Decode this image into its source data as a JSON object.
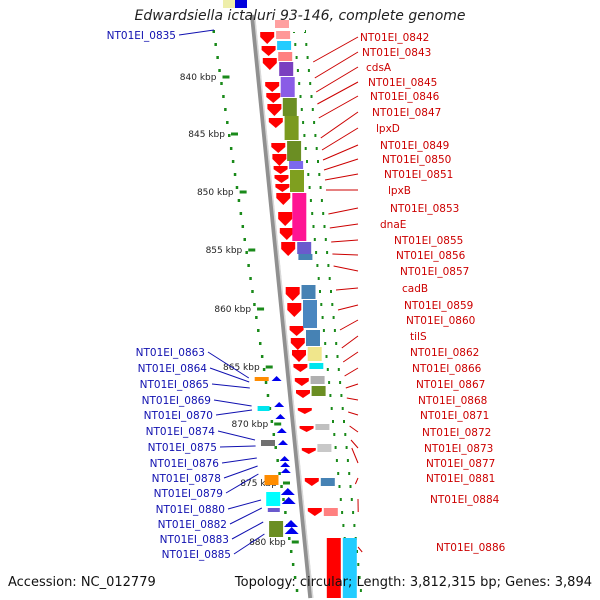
{
  "title": "Edwardsiella ictaluri 93-146, complete genome",
  "footer": {
    "accession": "Accession: NC_012779",
    "summary": "Topology: circular; Length: 3,812,315 bp; Genes: 3,894"
  },
  "colors": {
    "left_label": "#1010b0",
    "right_label": "#cc0000",
    "backbone": "#909090",
    "ruler": "#1a8a1a"
  },
  "ruler_ticks": [
    "840 kbp",
    "845 kbp",
    "850 kbp",
    "855 kbp",
    "860 kbp",
    "865 kbp",
    "870 kbp",
    "875 kbp",
    "880 kbp"
  ],
  "left_labels": [
    "NT01EI_0835",
    "NT01EI_0863",
    "NT01EI_0864",
    "NT01EI_0865",
    "NT01EI_0869",
    "NT01EI_0870",
    "NT01EI_0874",
    "NT01EI_0875",
    "NT01EI_0876",
    "NT01EI_0878",
    "NT01EI_0879",
    "NT01EI_0880",
    "NT01EI_0882",
    "NT01EI_0883",
    "NT01EI_0885"
  ],
  "right_labels": [
    "NT01EI_0842",
    "NT01EI_0843",
    "cdsA",
    "NT01EI_0845",
    "NT01EI_0846",
    "NT01EI_0847",
    "lpxD",
    "NT01EI_0849",
    "NT01EI_0850",
    "NT01EI_0851",
    "lpxB",
    "NT01EI_0853",
    "dnaE",
    "NT01EI_0855",
    "NT01EI_0856",
    "NT01EI_0857",
    "cadB",
    "NT01EI_0859",
    "NT01EI_0860",
    "tilS",
    "NT01EI_0862",
    "NT01EI_0866",
    "NT01EI_0867",
    "NT01EI_0868",
    "NT01EI_0871",
    "NT01EI_0872",
    "NT01EI_0873",
    "NT01EI_0877",
    "NT01EI_0881",
    "NT01EI_0884",
    "NT01EI_0886"
  ]
}
